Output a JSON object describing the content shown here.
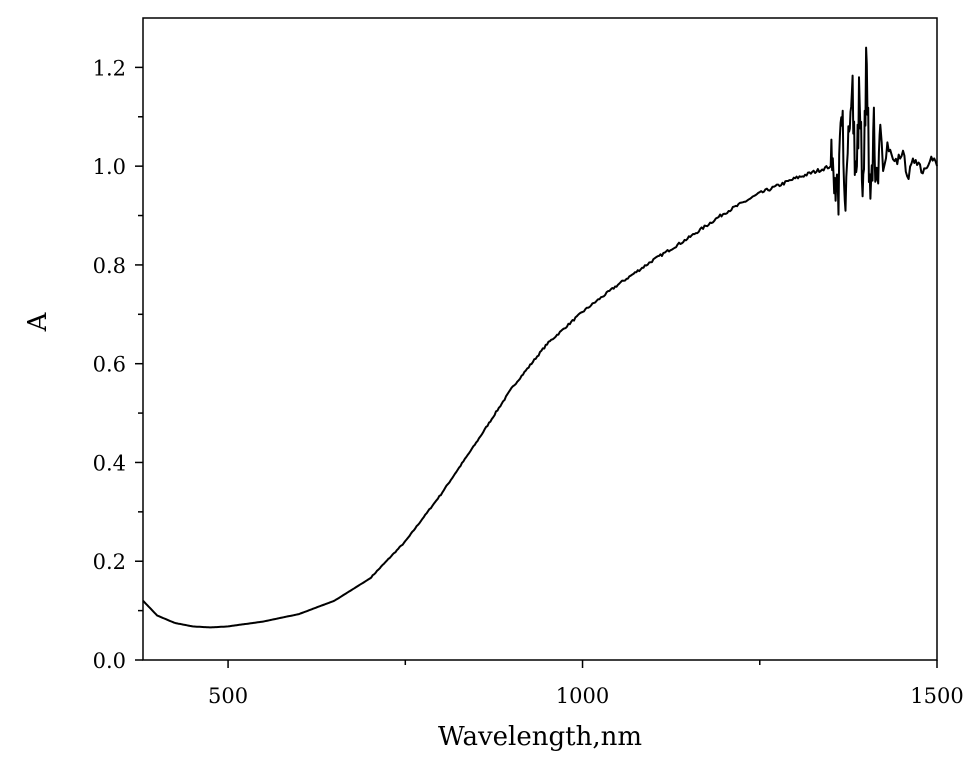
{
  "chart_data": {
    "type": "line",
    "title": "",
    "xlabel": "Wavelength,nm",
    "ylabel": "A",
    "xlim": [
      380,
      1500
    ],
    "ylim": [
      0.0,
      1.3
    ],
    "x_ticks": [
      500,
      1000,
      1500
    ],
    "x_tick_labels": [
      "500",
      "1000",
      "1500"
    ],
    "y_ticks": [
      0.0,
      0.2,
      0.4,
      0.6,
      0.8,
      1.0,
      1.2
    ],
    "y_tick_labels": [
      "0.0",
      "0.2",
      "0.4",
      "0.6",
      "0.8",
      "1.0",
      "1.2"
    ],
    "grid": false,
    "legend": "none",
    "line_color": "#000000",
    "series": [
      {
        "x": [
          380,
          400,
          425,
          450,
          475,
          500,
          550,
          600,
          650,
          700,
          750,
          800,
          850,
          900,
          950,
          1000,
          1050,
          1100,
          1150,
          1200,
          1250,
          1300,
          1330,
          1350,
          1360,
          1365,
          1370,
          1375,
          1380,
          1385,
          1390,
          1395,
          1400,
          1405,
          1410,
          1415,
          1420,
          1425,
          1430,
          1440,
          1450,
          1460,
          1470,
          1480,
          1490,
          1500
        ],
        "y": [
          0.12,
          0.09,
          0.075,
          0.068,
          0.066,
          0.068,
          0.078,
          0.093,
          0.12,
          0.165,
          0.24,
          0.335,
          0.44,
          0.55,
          0.64,
          0.705,
          0.76,
          0.81,
          0.855,
          0.905,
          0.945,
          0.975,
          0.99,
          1.0,
          0.96,
          1.12,
          0.93,
          1.05,
          1.15,
          0.94,
          1.18,
          0.92,
          1.24,
          0.9,
          1.07,
          0.95,
          1.08,
          0.98,
          1.04,
          1.0,
          1.03,
          0.98,
          1.02,
          0.99,
          1.02,
          1.0
        ]
      }
    ]
  }
}
